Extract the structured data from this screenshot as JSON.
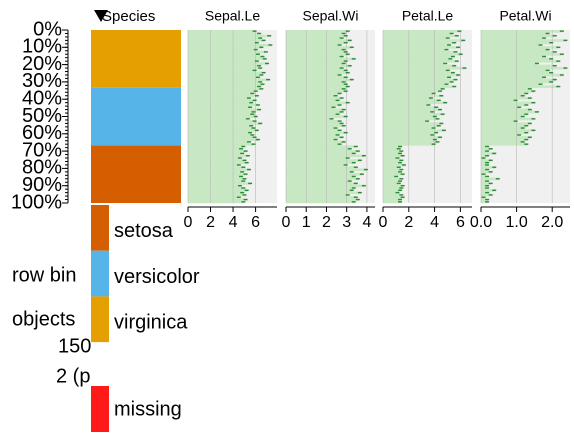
{
  "chart_data": {
    "type": "tableplot",
    "ylim": [
      0,
      100
    ],
    "yticks": [
      {
        "value": 0,
        "label": "0%"
      },
      {
        "value": 10,
        "label": "10%"
      },
      {
        "value": 20,
        "label": "20%"
      },
      {
        "value": 30,
        "label": "30%"
      },
      {
        "value": 40,
        "label": "40%"
      },
      {
        "value": 50,
        "label": "50%"
      },
      {
        "value": 60,
        "label": "60%"
      },
      {
        "value": 70,
        "label": "70%"
      },
      {
        "value": 80,
        "label": "80%"
      },
      {
        "value": 90,
        "label": "90%"
      },
      {
        "value": 100,
        "label": "100%"
      }
    ],
    "row_bins_label": "row bin",
    "objects_label": "objects",
    "objects": 150,
    "per_bin_label": "2 (p",
    "species": {
      "name": "Species",
      "categories": [
        "setosa",
        "versicolor",
        "virginica"
      ],
      "colors": [
        "#d55e00",
        "#56b4e9",
        "#e69f00"
      ],
      "values": [
        50,
        50,
        50
      ],
      "missing_label": "missing",
      "missing_color": "#ff1a1a"
    },
    "bar_color": "#c8e8c4",
    "end_color": "#2e8b3a",
    "series": [
      {
        "name": "Sepal.Le",
        "xlim": [
          0,
          7.9
        ],
        "xticks": [
          0,
          2,
          4,
          6
        ],
        "values": [
          6.0,
          6.4,
          7.3,
          6.5,
          6.8,
          6.2,
          7.4,
          6.6,
          6.1,
          7.0,
          6.3,
          6.7,
          6.9,
          6.2,
          7.1,
          6.4,
          6.5,
          6.0,
          6.8,
          6.6,
          6.3,
          7.2,
          6.5,
          6.7,
          6.4,
          6.6,
          6.1,
          5.8,
          6.2,
          5.5,
          6.0,
          5.7,
          6.3,
          5.6,
          6.4,
          5.9,
          5.8,
          6.1,
          5.4,
          6.0,
          6.5,
          5.7,
          5.9,
          6.2,
          5.6,
          5.8,
          6.0,
          6.3,
          5.5,
          5.9,
          5.0,
          4.8,
          5.2,
          4.9,
          5.4,
          4.7,
          5.1,
          5.3,
          4.6,
          5.0,
          5.5,
          4.9,
          5.2,
          4.8,
          5.1,
          5.0,
          5.6,
          4.7,
          5.0,
          5.3,
          4.9,
          5.1,
          4.6,
          5.2,
          5.0
        ]
      },
      {
        "name": "Sepal.Wi",
        "xlim": [
          0,
          4.4
        ],
        "xticks": [
          0,
          1,
          2,
          3,
          4
        ],
        "values": [
          3.1,
          2.9,
          3.0,
          2.8,
          3.2,
          3.0,
          2.7,
          3.3,
          2.9,
          3.0,
          3.1,
          2.8,
          3.4,
          3.0,
          2.9,
          3.2,
          2.8,
          3.0,
          3.1,
          2.7,
          3.0,
          3.3,
          2.9,
          3.0,
          3.1,
          2.9,
          3.0,
          2.7,
          2.5,
          2.8,
          2.6,
          3.1,
          2.7,
          2.4,
          2.9,
          2.8,
          2.6,
          3.0,
          2.3,
          2.7,
          2.8,
          2.9,
          2.5,
          2.7,
          3.0,
          2.6,
          2.8,
          2.5,
          2.9,
          2.7,
          3.5,
          3.2,
          3.6,
          3.4,
          3.9,
          3.1,
          3.7,
          3.4,
          3.0,
          3.5,
          4.0,
          3.3,
          3.8,
          3.4,
          3.6,
          3.2,
          3.5,
          3.9,
          3.4,
          3.3,
          3.7,
          3.1,
          3.5,
          3.6,
          3.4
        ]
      },
      {
        "name": "Petal.Le",
        "xlim": [
          0,
          6.9
        ],
        "xticks": [
          0,
          2,
          4,
          6
        ],
        "values": [
          6.0,
          5.4,
          5.8,
          5.1,
          6.3,
          5.6,
          5.2,
          5.9,
          5.0,
          5.7,
          6.1,
          5.5,
          5.3,
          5.8,
          4.9,
          5.6,
          6.4,
          5.1,
          5.5,
          5.9,
          5.2,
          5.7,
          5.4,
          5.0,
          5.6,
          4.7,
          4.5,
          4.0,
          4.6,
          3.8,
          4.4,
          4.9,
          3.6,
          4.2,
          4.5,
          3.9,
          4.7,
          4.1,
          4.3,
          3.5,
          4.6,
          4.4,
          4.0,
          4.8,
          4.2,
          3.9,
          4.5,
          4.1,
          4.3,
          4.0,
          1.4,
          1.3,
          1.5,
          1.4,
          1.6,
          1.2,
          1.5,
          1.4,
          1.7,
          1.3,
          1.5,
          1.4,
          1.6,
          1.1,
          1.5,
          1.4,
          1.3,
          1.6,
          1.5,
          1.4,
          1.2,
          1.5,
          1.6,
          1.4,
          1.4
        ]
      },
      {
        "name": "Petal.Wi",
        "xlim": [
          0,
          2.5
        ],
        "xticks": [
          {
            "value": 0,
            "label": "0.0"
          },
          {
            "value": 1,
            "label": "1.0"
          },
          {
            "value": 2,
            "label": "2.0"
          }
        ],
        "values": [
          2.3,
          1.9,
          2.1,
          1.8,
          2.4,
          2.0,
          1.7,
          2.2,
          1.9,
          2.1,
          2.3,
          1.8,
          2.0,
          2.2,
          1.6,
          2.1,
          2.4,
          1.9,
          2.0,
          2.3,
          1.8,
          2.1,
          2.0,
          1.7,
          2.2,
          1.4,
          1.5,
          1.3,
          1.2,
          1.4,
          1.0,
          1.5,
          1.3,
          1.1,
          1.4,
          1.6,
          1.3,
          1.2,
          1.5,
          1.0,
          1.4,
          1.3,
          1.2,
          1.5,
          1.3,
          1.1,
          1.4,
          1.3,
          1.2,
          1.3,
          0.2,
          0.3,
          0.2,
          0.4,
          0.2,
          0.1,
          0.3,
          0.2,
          0.2,
          0.4,
          0.2,
          0.3,
          0.1,
          0.2,
          0.5,
          0.2,
          0.3,
          0.2,
          0.2,
          0.4,
          0.2,
          0.3,
          0.1,
          0.2,
          0.2
        ]
      }
    ]
  }
}
